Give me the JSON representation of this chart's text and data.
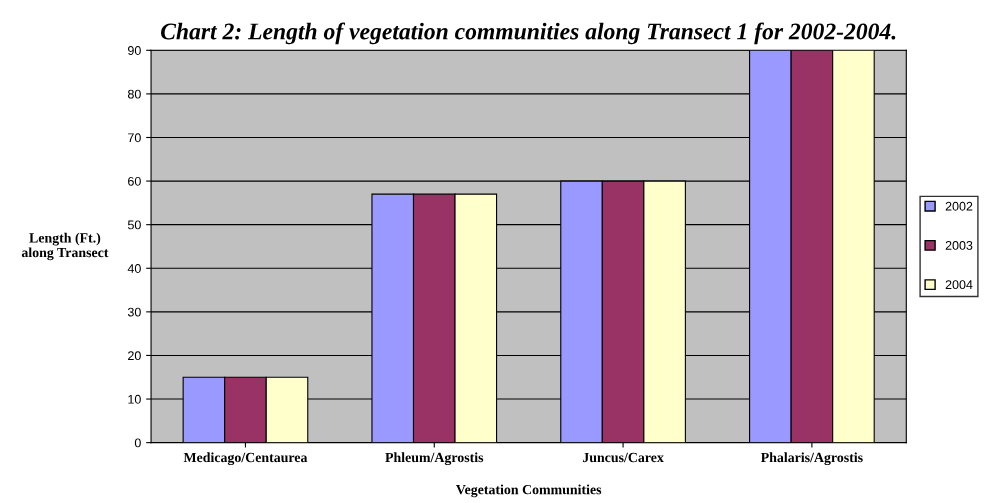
{
  "chart_data": {
    "type": "bar",
    "title": "Chart 2: Length of vegetation communities along Transect 1 for 2002-2004.",
    "xlabel": "Vegetation Communities",
    "ylabel": "Length (Ft.)\nalong Transect",
    "categories": [
      "Medicago/Centaurea",
      "Phleum/Agrostis",
      "Juncus/Carex",
      "Phalaris/Agrostis"
    ],
    "series": [
      {
        "name": "2002",
        "color": "#9999ff",
        "values": [
          15,
          57,
          60,
          90
        ]
      },
      {
        "name": "2003",
        "color": "#993366",
        "values": [
          15,
          57,
          60,
          90
        ]
      },
      {
        "name": "2004",
        "color": "#ffffcc",
        "values": [
          15,
          57,
          60,
          90
        ]
      }
    ],
    "ylim": [
      0,
      90
    ],
    "yticks": [
      0,
      10,
      20,
      30,
      40,
      50,
      60,
      70,
      80,
      90
    ],
    "grid": "y",
    "legend": "right"
  }
}
